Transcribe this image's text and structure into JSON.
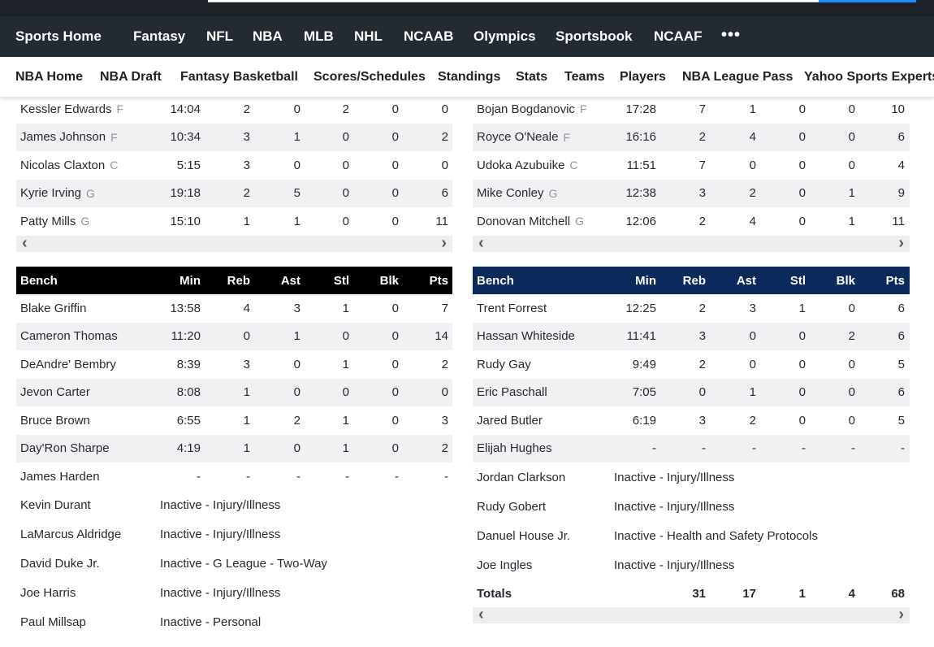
{
  "nav_main": [
    "Sports Home",
    "Fantasy",
    "NFL",
    "NBA",
    "MLB",
    "NHL",
    "NCAAB",
    "Olympics",
    "Sportsbook",
    "NCAAF"
  ],
  "nav_more": "•••",
  "nav_sub": [
    "NBA Home",
    "NBA Draft",
    "Fantasy Basketball",
    "Scores/Schedules",
    "Standings",
    "Stats",
    "Teams",
    "Players",
    "NBA League Pass",
    "Yahoo Sports Experts"
  ],
  "left_starters": [
    {
      "name": "Kessler Edwards",
      "pos": "F",
      "min": "14:04",
      "reb": "2",
      "ast": "0",
      "stl": "2",
      "blk": "0",
      "pts": "0"
    },
    {
      "name": "James Johnson",
      "pos": "F",
      "min": "10:34",
      "reb": "3",
      "ast": "1",
      "stl": "0",
      "blk": "0",
      "pts": "2"
    },
    {
      "name": "Nicolas Claxton",
      "pos": "C",
      "min": "5:15",
      "reb": "3",
      "ast": "0",
      "stl": "0",
      "blk": "0",
      "pts": "0"
    },
    {
      "name": "Kyrie Irving",
      "pos": "G",
      "min": "19:18",
      "reb": "2",
      "ast": "5",
      "stl": "0",
      "blk": "0",
      "pts": "6"
    },
    {
      "name": "Patty Mills",
      "pos": "G",
      "min": "15:10",
      "reb": "1",
      "ast": "1",
      "stl": "0",
      "blk": "0",
      "pts": "11"
    }
  ],
  "right_starters": [
    {
      "name": "Bojan Bogdanovic",
      "pos": "F",
      "min": "17:28",
      "reb": "7",
      "ast": "1",
      "stl": "0",
      "blk": "0",
      "pts": "10"
    },
    {
      "name": "Royce O'Neale",
      "pos": "F",
      "min": "16:16",
      "reb": "2",
      "ast": "4",
      "stl": "0",
      "blk": "0",
      "pts": "6"
    },
    {
      "name": "Udoka Azubuike",
      "pos": "C",
      "min": "11:51",
      "reb": "7",
      "ast": "0",
      "stl": "0",
      "blk": "0",
      "pts": "4"
    },
    {
      "name": "Mike Conley",
      "pos": "G",
      "min": "12:38",
      "reb": "3",
      "ast": "2",
      "stl": "0",
      "blk": "1",
      "pts": "9"
    },
    {
      "name": "Donovan Mitchell",
      "pos": "G",
      "min": "12:06",
      "reb": "2",
      "ast": "4",
      "stl": "0",
      "blk": "1",
      "pts": "11"
    }
  ],
  "bench_headers": {
    "name": "Bench",
    "min": "Min",
    "reb": "Reb",
    "ast": "Ast",
    "stl": "Stl",
    "blk": "Blk",
    "pts": "Pts"
  },
  "left_bench": [
    {
      "name": "Blake Griffin",
      "min": "13:58",
      "reb": "4",
      "ast": "3",
      "stl": "1",
      "blk": "0",
      "pts": "7"
    },
    {
      "name": "Cameron Thomas",
      "min": "11:20",
      "reb": "0",
      "ast": "1",
      "stl": "0",
      "blk": "0",
      "pts": "14"
    },
    {
      "name": "DeAndre' Bembry",
      "min": "8:39",
      "reb": "3",
      "ast": "0",
      "stl": "1",
      "blk": "0",
      "pts": "2"
    },
    {
      "name": "Jevon Carter",
      "min": "8:08",
      "reb": "1",
      "ast": "0",
      "stl": "0",
      "blk": "0",
      "pts": "0"
    },
    {
      "name": "Bruce Brown",
      "min": "6:55",
      "reb": "1",
      "ast": "2",
      "stl": "1",
      "blk": "0",
      "pts": "3"
    },
    {
      "name": "Day'Ron Sharpe",
      "min": "4:19",
      "reb": "1",
      "ast": "0",
      "stl": "1",
      "blk": "0",
      "pts": "2"
    },
    {
      "name": "James Harden",
      "min": "-",
      "reb": "-",
      "ast": "-",
      "stl": "-",
      "blk": "-",
      "pts": "-"
    }
  ],
  "left_inactive": [
    {
      "name": "Kevin Durant",
      "status": "Inactive - Injury/Illness"
    },
    {
      "name": "LaMarcus Aldridge",
      "status": "Inactive - Injury/Illness"
    },
    {
      "name": "David Duke Jr.",
      "status": "Inactive - G League - Two-Way"
    },
    {
      "name": "Joe Harris",
      "status": "Inactive - Injury/Illness"
    },
    {
      "name": "Paul Millsap",
      "status": "Inactive - Personal"
    }
  ],
  "right_bench": [
    {
      "name": "Trent Forrest",
      "min": "12:25",
      "reb": "2",
      "ast": "3",
      "stl": "1",
      "blk": "0",
      "pts": "6"
    },
    {
      "name": "Hassan Whiteside",
      "min": "11:41",
      "reb": "3",
      "ast": "0",
      "stl": "0",
      "blk": "2",
      "pts": "6"
    },
    {
      "name": "Rudy Gay",
      "min": "9:49",
      "reb": "2",
      "ast": "0",
      "stl": "0",
      "blk": "0",
      "pts": "5"
    },
    {
      "name": "Eric Paschall",
      "min": "7:05",
      "reb": "0",
      "ast": "1",
      "stl": "0",
      "blk": "0",
      "pts": "6"
    },
    {
      "name": "Jared Butler",
      "min": "6:19",
      "reb": "3",
      "ast": "2",
      "stl": "0",
      "blk": "0",
      "pts": "5"
    },
    {
      "name": "Elijah Hughes",
      "min": "-",
      "reb": "-",
      "ast": "-",
      "stl": "-",
      "blk": "-",
      "pts": "-"
    }
  ],
  "right_inactive": [
    {
      "name": "Jordan Clarkson",
      "status": "Inactive - Injury/Illness"
    },
    {
      "name": "Rudy Gobert",
      "status": "Inactive - Injury/Illness"
    },
    {
      "name": "Danuel House Jr.",
      "status": "Inactive - Health and Safety Protocols"
    },
    {
      "name": "Joe Ingles",
      "status": "Inactive - Injury/Illness"
    }
  ],
  "right_totals": {
    "label": "Totals",
    "reb": "31",
    "ast": "17",
    "stl": "1",
    "blk": "4",
    "pts": "68"
  },
  "colors": {
    "left_header": "#000000",
    "right_header": "#0b2a5b",
    "nav_bg": "#232a31"
  }
}
